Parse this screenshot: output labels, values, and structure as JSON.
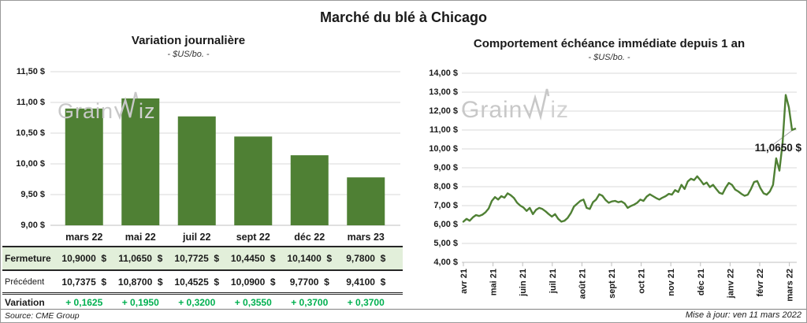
{
  "page": {
    "title": "Marché du blé à Chicago"
  },
  "watermark": {
    "part1": "Grain",
    "part2": "iz"
  },
  "footer": {
    "source": "Source: CME Group",
    "updated": "Mise à jour: ven 11 mars 2022"
  },
  "colors": {
    "bar_green": "#4f8034",
    "line_green": "#4f8034",
    "variation_green": "#00B050",
    "highlight_row": "#e2efda",
    "grid": "#d9d9d9",
    "axis": "#bfbfbf",
    "leader": "#a6a6a6",
    "watermark": "#c8c8c8"
  },
  "table": {
    "col_headers": [
      "mars 22",
      "mai 22",
      "juil 22",
      "sept 22",
      "déc 22",
      "mars 23"
    ],
    "rows": [
      {
        "label": "Fermeture",
        "values": [
          "10,9000  $",
          "11,0650  $",
          "10,7725  $",
          "10,4450  $",
          "10,1400  $",
          "9,7800  $"
        ]
      },
      {
        "label": "Précédent",
        "values": [
          "10,7375  $",
          "10,8700  $",
          "10,4525  $",
          "10,0900  $",
          "9,7700  $",
          "9,4100  $"
        ]
      },
      {
        "label": "Variation",
        "values": [
          "+ 0,1625",
          "+ 0,1950",
          "+ 0,3200",
          "+ 0,3550",
          "+ 0,3700",
          "+ 0,3700"
        ]
      }
    ]
  },
  "chart_data": [
    {
      "type": "bar",
      "title": "Variation journalière",
      "subtitle": "- $US/bo. -",
      "categories": [
        "mars 22",
        "mai 22",
        "juil 22",
        "sept 22",
        "déc 22",
        "mars 23"
      ],
      "values": [
        10.9,
        11.065,
        10.7725,
        10.445,
        10.14,
        9.78
      ],
      "ylim": [
        9.0,
        11.5
      ],
      "ytick_step": 0.5,
      "ytick_labels": [
        "11,50 $",
        "11,00 $",
        "10,50 $",
        "10,00 $",
        "9,50 $",
        "9,00 $"
      ],
      "grid": true,
      "legend": "none"
    },
    {
      "type": "line",
      "title": "Comportement échéance immédiate depuis 1 an",
      "subtitle": "- $US/bo. -",
      "x_labels": [
        "avr 21",
        "mai 21",
        "juin 21",
        "juil 21",
        "août 21",
        "sept 21",
        "oct 21",
        "nov 21",
        "déc 21",
        "janv 22",
        "févr 22",
        "mars 22"
      ],
      "ylim": [
        4.0,
        14.0
      ],
      "ytick_step": 1.0,
      "ytick_labels": [
        "14,00 $",
        "13,00 $",
        "12,00 $",
        "11,00 $",
        "10,00 $",
        "9,00 $",
        "8,00 $",
        "7,00 $",
        "6,00 $",
        "5,00 $",
        "4,00 $"
      ],
      "grid": true,
      "legend": "none",
      "annotation": {
        "text": "11,0650 $",
        "value": 11.065
      },
      "values": [
        6.15,
        6.3,
        6.2,
        6.38,
        6.5,
        6.45,
        6.52,
        6.65,
        6.85,
        7.25,
        7.45,
        7.32,
        7.5,
        7.42,
        7.65,
        7.55,
        7.4,
        7.15,
        7.0,
        6.9,
        6.72,
        6.88,
        6.55,
        6.78,
        6.88,
        6.82,
        6.7,
        6.55,
        6.42,
        6.55,
        6.3,
        6.15,
        6.2,
        6.35,
        6.6,
        6.95,
        7.1,
        7.25,
        7.32,
        6.88,
        6.82,
        7.18,
        7.32,
        7.6,
        7.52,
        7.3,
        7.15,
        7.22,
        7.25,
        7.18,
        7.22,
        7.12,
        6.88,
        6.98,
        7.05,
        7.15,
        7.32,
        7.25,
        7.48,
        7.6,
        7.5,
        7.4,
        7.32,
        7.42,
        7.5,
        7.62,
        7.58,
        7.82,
        7.72,
        8.1,
        7.88,
        8.28,
        8.42,
        8.35,
        8.55,
        8.35,
        8.12,
        8.22,
        7.98,
        8.1,
        7.88,
        7.68,
        7.62,
        7.95,
        8.2,
        8.1,
        7.85,
        7.75,
        7.62,
        7.52,
        7.58,
        7.88,
        8.25,
        8.3,
        7.92,
        7.65,
        7.58,
        7.75,
        8.1,
        9.5,
        8.85,
        10.3,
        12.85,
        12.2,
        11.0,
        11.065
      ]
    }
  ]
}
